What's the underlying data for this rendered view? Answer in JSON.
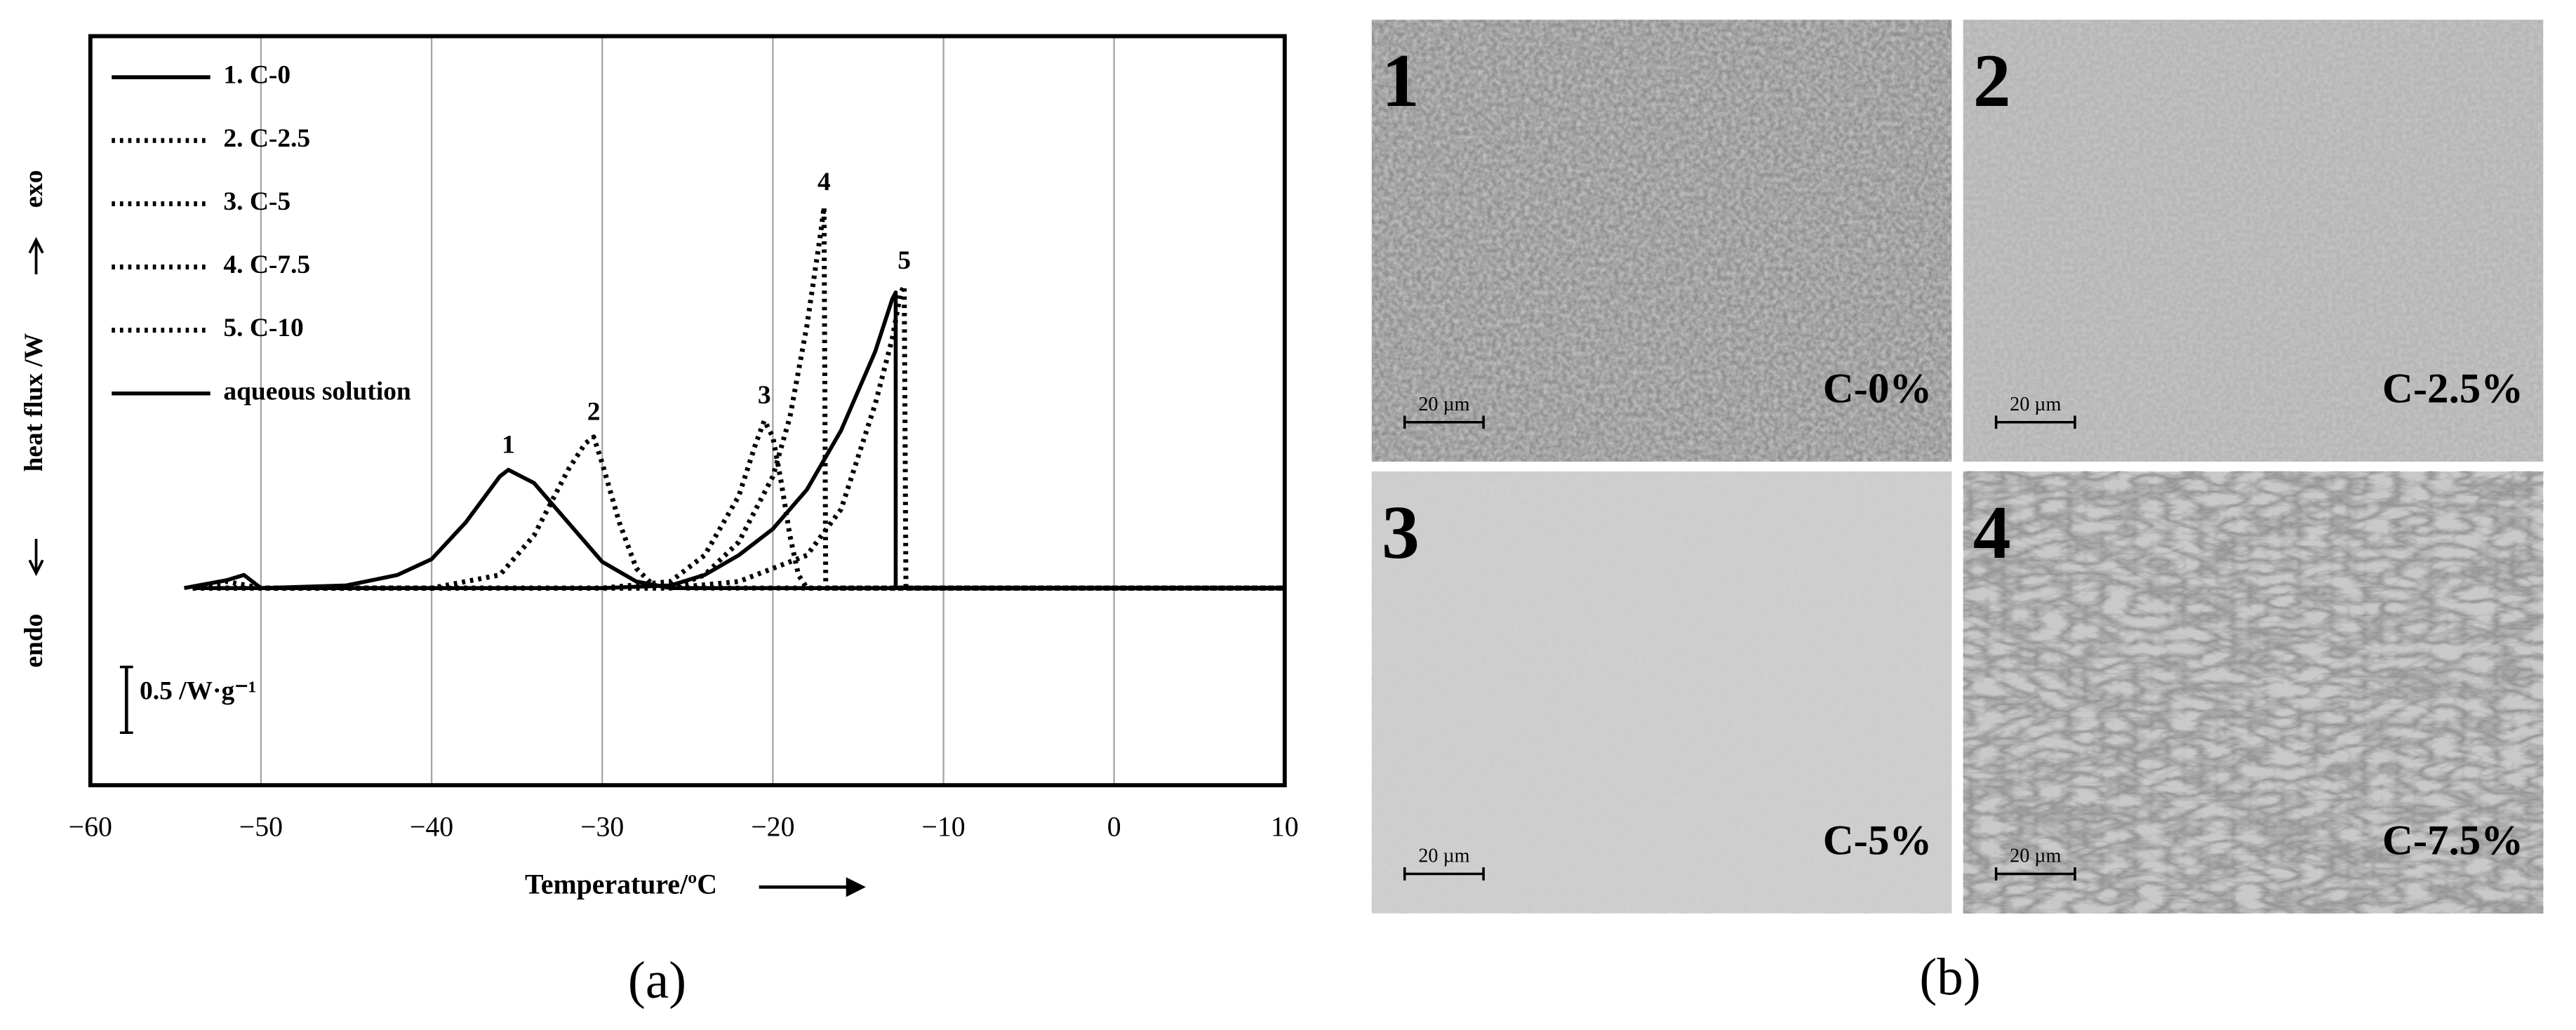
{
  "chart_data": {
    "type": "line",
    "x_label": "Temperature/ºC",
    "y_label": "heat flux /W",
    "endo_label": "endo",
    "exo_label": "exo",
    "xlim": [
      -60,
      10
    ],
    "xticks": [
      {
        "value": -60,
        "label": "−60"
      },
      {
        "value": -50,
        "label": "−50"
      },
      {
        "value": -40,
        "label": "−40"
      },
      {
        "value": -30,
        "label": "−30"
      },
      {
        "value": -20,
        "label": "−20"
      },
      {
        "value": -10,
        "label": "−10"
      },
      0,
      10
    ],
    "ylim": [
      -1.5,
      4.2
    ],
    "grid": true,
    "legend": "upper left",
    "scale_bar": {
      "value": 0.5,
      "label": "0.5 /W·g⁻¹"
    },
    "peak_labels": [
      "1",
      "2",
      "3",
      "4",
      "5"
    ],
    "series": [
      {
        "name": "1. C-0",
        "color": "#000000",
        "dotted": false,
        "x": [
          -54.5,
          -52,
          -51,
          -50,
          -45,
          -42,
          -40,
          -38,
          -36,
          -35.5,
          -34,
          -32,
          -30,
          -28,
          -26,
          -10,
          10
        ],
        "values": [
          0,
          0.06,
          0.1,
          0,
          0.02,
          0.1,
          0.22,
          0.5,
          0.85,
          0.9,
          0.8,
          0.5,
          0.2,
          0.05,
          0,
          0,
          0
        ]
      },
      {
        "name": "2. C-2.5",
        "color": "#000000",
        "dotted": true,
        "x": [
          -54,
          -52,
          -50,
          -40,
          -36,
          -34,
          -32,
          -31,
          -30.5,
          -30,
          -29,
          -28,
          -27,
          -25,
          10
        ],
        "values": [
          0,
          0.05,
          0,
          0,
          0.1,
          0.4,
          0.9,
          1.1,
          1.15,
          0.95,
          0.5,
          0.15,
          0.02,
          0,
          0
        ]
      },
      {
        "name": "3. C-5",
        "color": "#000000",
        "dotted": true,
        "x": [
          -54,
          -30,
          -26,
          -24,
          -22,
          -21,
          -20.5,
          -20,
          -19.5,
          -19,
          -18.5,
          -18,
          10
        ],
        "values": [
          0,
          0,
          0.05,
          0.25,
          0.7,
          1.1,
          1.275,
          1.15,
          0.8,
          0.4,
          0.1,
          0,
          0
        ]
      },
      {
        "name": "4. C-7.5",
        "color": "#000000",
        "dotted": true,
        "x": [
          -54,
          -26,
          -24,
          -22,
          -20,
          -19,
          -18,
          -17.2,
          -17,
          -16.9,
          10
        ],
        "values": [
          0,
          0,
          0.1,
          0.35,
          0.85,
          1.3,
          2.0,
          2.7,
          2.9,
          0,
          0
        ]
      },
      {
        "name": "5. C-10",
        "color": "#000000",
        "dotted": true,
        "x": [
          -54,
          -26,
          -22,
          -18,
          -16,
          -14,
          -13,
          -12.5,
          -12.3,
          -12.2,
          10
        ],
        "values": [
          0,
          0,
          0.05,
          0.25,
          0.6,
          1.4,
          1.9,
          2.25,
          2.3,
          0,
          0
        ]
      },
      {
        "name": "aqueous solution",
        "color": "#000000",
        "dotted": false,
        "x": [
          -54,
          -30,
          -26,
          -24,
          -22,
          -20,
          -18,
          -16,
          -14,
          -13,
          -12.8,
          -12.8,
          10
        ],
        "values": [
          0,
          0,
          0.02,
          0.1,
          0.25,
          0.45,
          0.75,
          1.2,
          1.8,
          2.2,
          2.25,
          0,
          0
        ]
      }
    ]
  },
  "micrographs": [
    {
      "number": "1",
      "label": "C-0%",
      "scale": "20 µm"
    },
    {
      "number": "2",
      "label": "C-2.5%",
      "scale": "20 µm"
    },
    {
      "number": "3",
      "label": "C-5%",
      "scale": "20 µm"
    },
    {
      "number": "4",
      "label": "C-7.5%",
      "scale": "20 µm"
    }
  ],
  "panel_labels": [
    "(a)",
    "(b)"
  ]
}
